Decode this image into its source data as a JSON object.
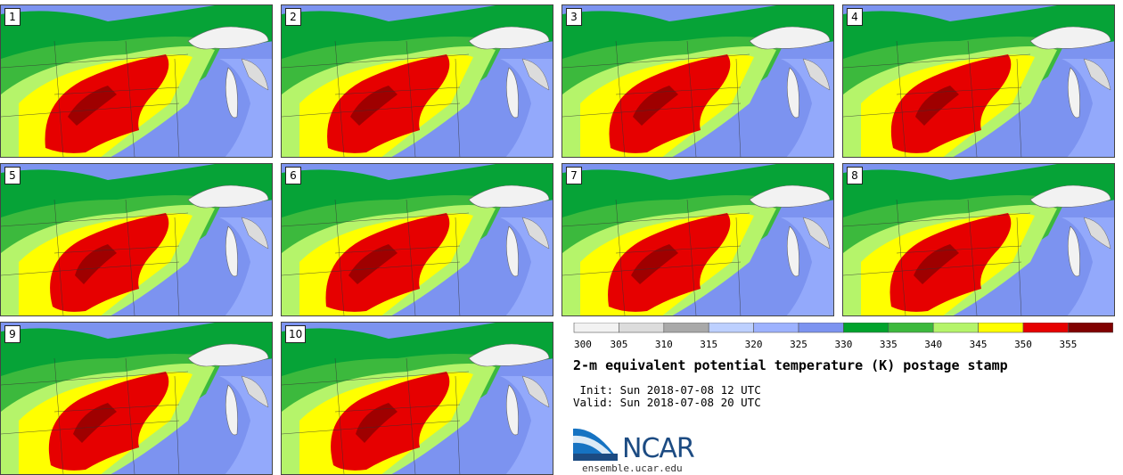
{
  "panels": [
    {
      "label": "1"
    },
    {
      "label": "2"
    },
    {
      "label": "3"
    },
    {
      "label": "4"
    },
    {
      "label": "5"
    },
    {
      "label": "6"
    },
    {
      "label": "7"
    },
    {
      "label": "8"
    },
    {
      "label": "9"
    },
    {
      "label": "10"
    }
  ],
  "colorbar": {
    "ticks": [
      "300",
      "305",
      "310",
      "315",
      "320",
      "325",
      "330",
      "335",
      "340",
      "345",
      "350",
      "355"
    ],
    "colors": [
      "#f2f2f2",
      "#dcdcdc",
      "#a9a9a9",
      "#bdd0ff",
      "#9db2ff",
      "#7c93f0",
      "#00a32c",
      "#3cb93d",
      "#b5f46a",
      "#ffff00",
      "#e60000",
      "#800000"
    ]
  },
  "title": "2-m equivalent potential temperature (K) postage stamp",
  "init_line": " Init: Sun 2018-07-08 12 UTC",
  "valid_line": "Valid: Sun 2018-07-08 20 UTC",
  "logo": {
    "name": "ncar-logo",
    "wordmark": "NCAR",
    "url": "ensemble.ucar.edu"
  }
}
